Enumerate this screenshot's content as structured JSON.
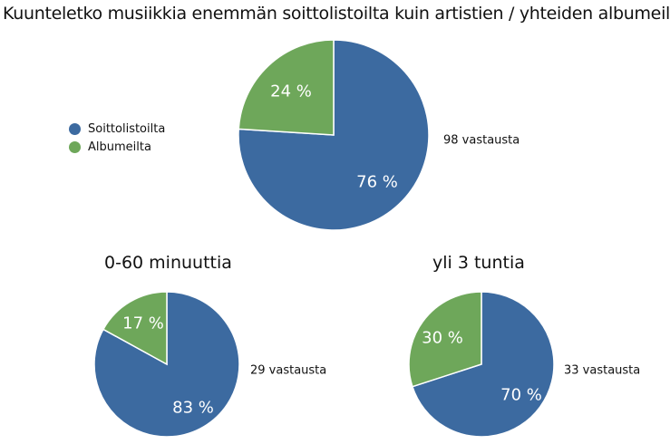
{
  "title": "Kuunteletko musiikkia enemmän soittolistoilta kuin artistien / yhteiden albumeilta?",
  "legend": [
    {
      "label": "Soittolistoilta",
      "color": "#3c6aa0"
    },
    {
      "label": "Albumeilta",
      "color": "#6ea75a"
    }
  ],
  "chart_data": [
    {
      "type": "pie",
      "title": "",
      "categories": [
        "Soittolistoilta",
        "Albumeilta"
      ],
      "values": [
        76,
        24
      ],
      "labels": [
        "76 %",
        "24 %"
      ],
      "colors": [
        "#3c6aa0",
        "#6ea75a"
      ],
      "responses_label": "98 vastausta"
    },
    {
      "type": "pie",
      "title": "0-60 minuuttia",
      "categories": [
        "Soittolistoilta",
        "Albumeilta"
      ],
      "values": [
        83,
        17
      ],
      "labels": [
        "83 %",
        "17 %"
      ],
      "colors": [
        "#3c6aa0",
        "#6ea75a"
      ],
      "responses_label": "29 vastausta"
    },
    {
      "type": "pie",
      "title": "yli 3 tuntia",
      "categories": [
        "Soittolistoilta",
        "Albumeilta"
      ],
      "values": [
        70,
        30
      ],
      "labels": [
        "70 %",
        "30 %"
      ],
      "colors": [
        "#3c6aa0",
        "#6ea75a"
      ],
      "responses_label": "33 vastausta"
    }
  ]
}
